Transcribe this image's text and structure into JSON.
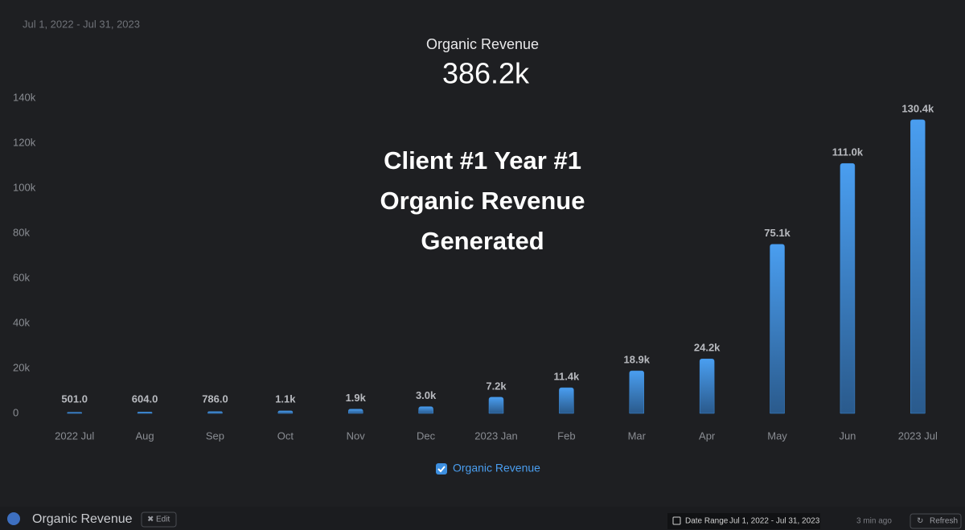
{
  "chart_data": {
    "type": "bar",
    "title": "Organic Revenue",
    "categories": [
      "2022 Jul",
      "Aug",
      "Sep",
      "Oct",
      "Nov",
      "Dec",
      "2023 Jan",
      "Feb",
      "Mar",
      "Apr",
      "May",
      "Jun",
      "2023 Jul"
    ],
    "series": [
      {
        "name": "Organic Revenue",
        "color": "#3d8fe0",
        "values": [
          501,
          604,
          786,
          1100,
          1900,
          3000,
          7200,
          11400,
          18900,
          24200,
          75100,
          111000,
          130400
        ],
        "value_labels": [
          "501.0",
          "604.0",
          "786.0",
          "1.1k",
          "1.9k",
          "3.0k",
          "7.2k",
          "11.4k",
          "18.9k",
          "24.2k",
          "75.1k",
          "111.0k",
          "130.4k"
        ]
      }
    ],
    "ylim": [
      0,
      140000
    ],
    "yticks": [
      0,
      {
        "value": 20000,
        "label": "20k"
      },
      {
        "value": 40000,
        "label": "40k"
      },
      {
        "value": 60000,
        "label": "60k"
      },
      {
        "value": 80000,
        "label": "80k"
      },
      {
        "value": 100000,
        "label": "100k"
      },
      {
        "value": 120000,
        "label": "120k"
      },
      {
        "value": 140000,
        "label": "140k"
      }
    ],
    "grid": false
  },
  "widget": {
    "date_range": "Jul 1, 2022 - Jul 31, 2023",
    "total": "386.2k",
    "overlay": [
      "Client #1 Year #1",
      "Organic Revenue",
      "Generated"
    ]
  },
  "footer": {
    "name": "Organic Revenue",
    "edit": "Edit",
    "date_range_label": "Date Range",
    "date_range": "Jul 1, 2022 - Jul 31, 2023",
    "updated": "3 min ago",
    "refresh": "Refresh"
  }
}
